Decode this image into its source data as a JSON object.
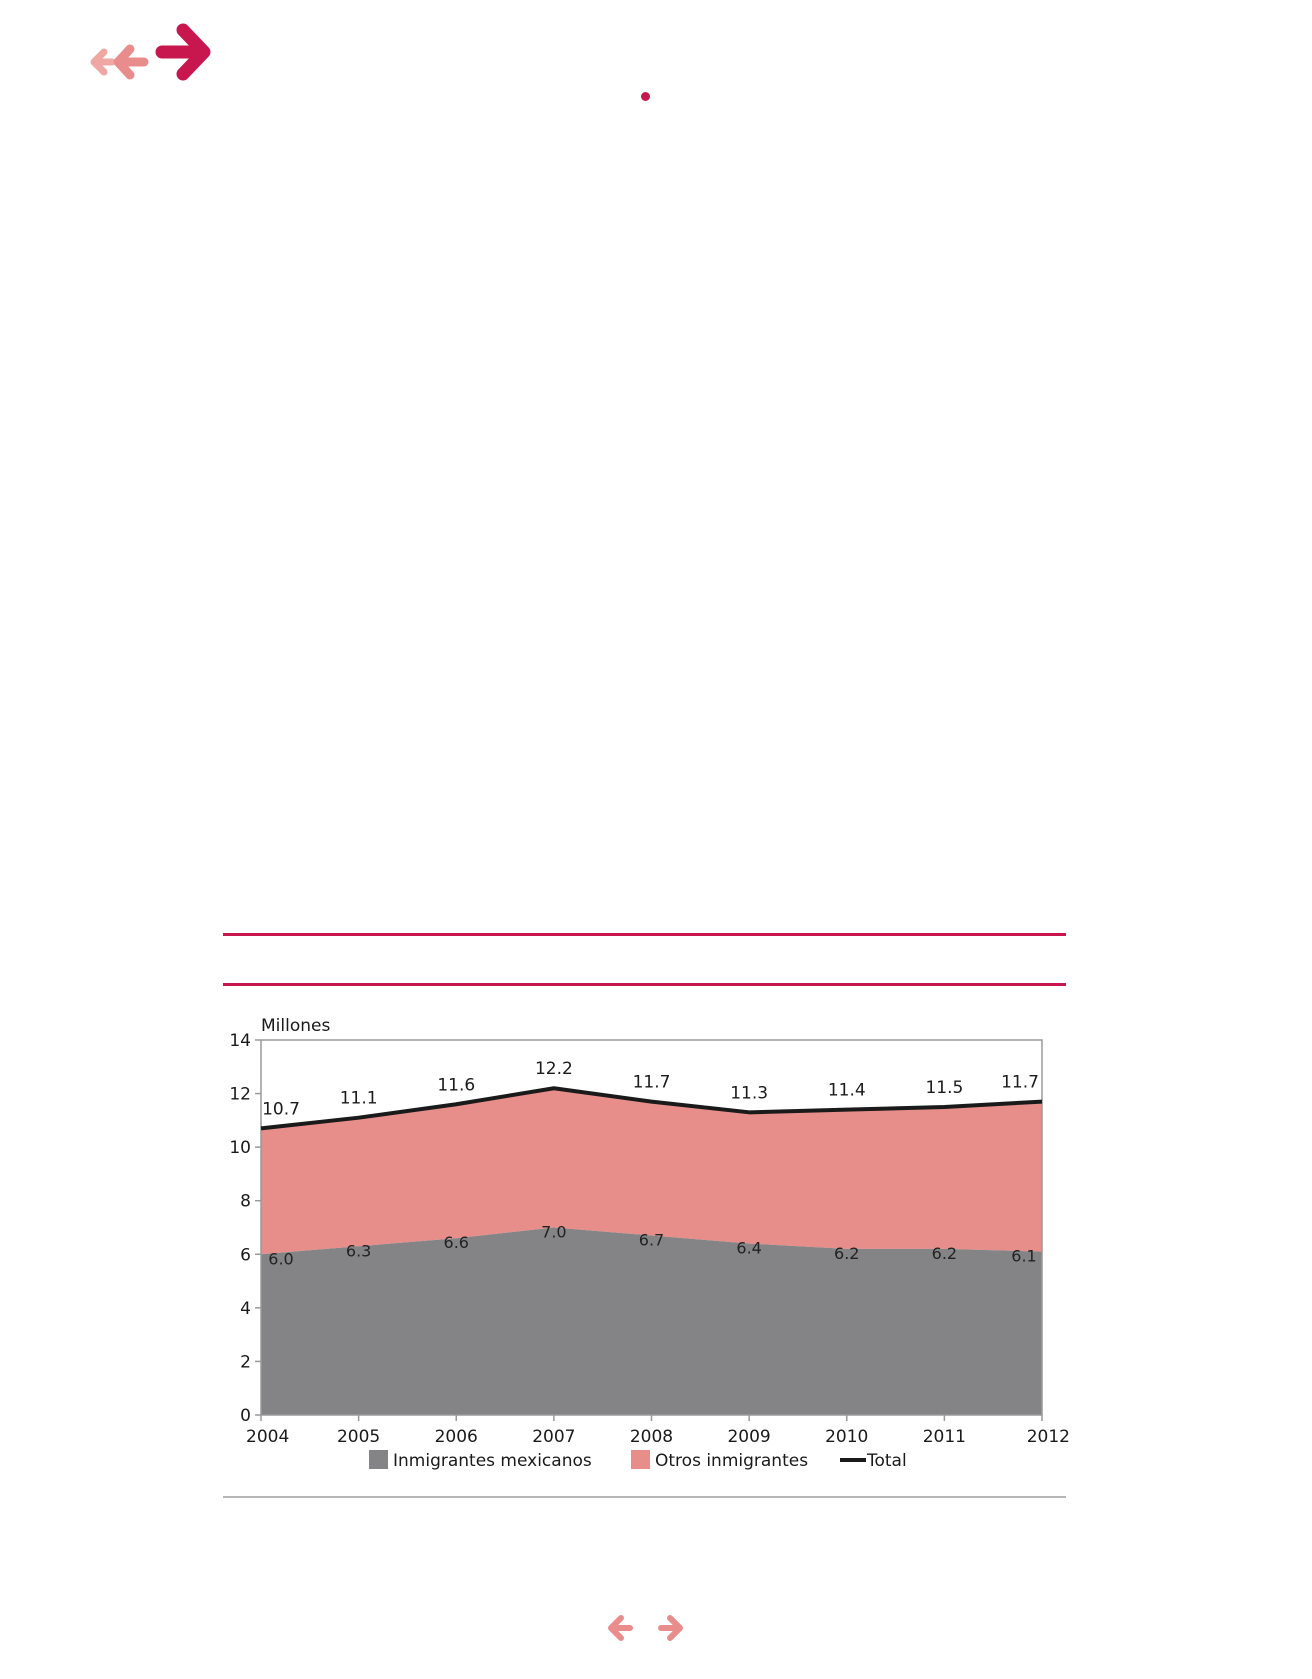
{
  "colors": {
    "accent": "#c8174f",
    "accent_light": "#e98c8c",
    "accent_lighter": "#efa7a3",
    "mexicanos": "#848487",
    "otros": "#e78d8a",
    "total": "#1a1a1a",
    "axis": "#9a9a9a"
  },
  "icons": {
    "nav_top": [
      "arrow-left-small-icon",
      "arrow-left-icon",
      "arrow-right-large-icon"
    ],
    "nav_bottom": [
      "arrow-left-icon",
      "arrow-right-icon"
    ]
  },
  "chart_data": {
    "type": "area",
    "ylabel": "Millones",
    "ylim": [
      0,
      14
    ],
    "yticks": [
      0,
      2,
      4,
      6,
      8,
      10,
      12,
      14
    ],
    "x": [
      "2004",
      "2005",
      "2006",
      "2007",
      "2008",
      "2009",
      "2010",
      "2011",
      "2012"
    ],
    "stacked": true,
    "grid": false,
    "legend_position": "bottom",
    "series": [
      {
        "name": "Inmigrantes mexicanos",
        "kind": "area",
        "values": [
          6.0,
          6.3,
          6.6,
          7.0,
          6.7,
          6.4,
          6.2,
          6.2,
          6.1
        ],
        "labels": [
          "6.0",
          "6.3",
          "6.6",
          "7.0",
          "6.7",
          "6.4",
          "6.2",
          "6.2",
          "6.1"
        ]
      },
      {
        "name": "Otros inmigrantes",
        "kind": "area",
        "values": [
          4.7,
          4.8,
          5.0,
          5.2,
          5.0,
          4.9,
          5.2,
          5.3,
          5.6
        ]
      },
      {
        "name": "Total",
        "kind": "line",
        "values": [
          10.7,
          11.1,
          11.6,
          12.2,
          11.7,
          11.3,
          11.4,
          11.5,
          11.7
        ],
        "labels": [
          "10.7",
          "11.1",
          "11.6",
          "12.2",
          "11.7",
          "11.3",
          "11.4",
          "11.5",
          "11.7"
        ]
      }
    ]
  }
}
